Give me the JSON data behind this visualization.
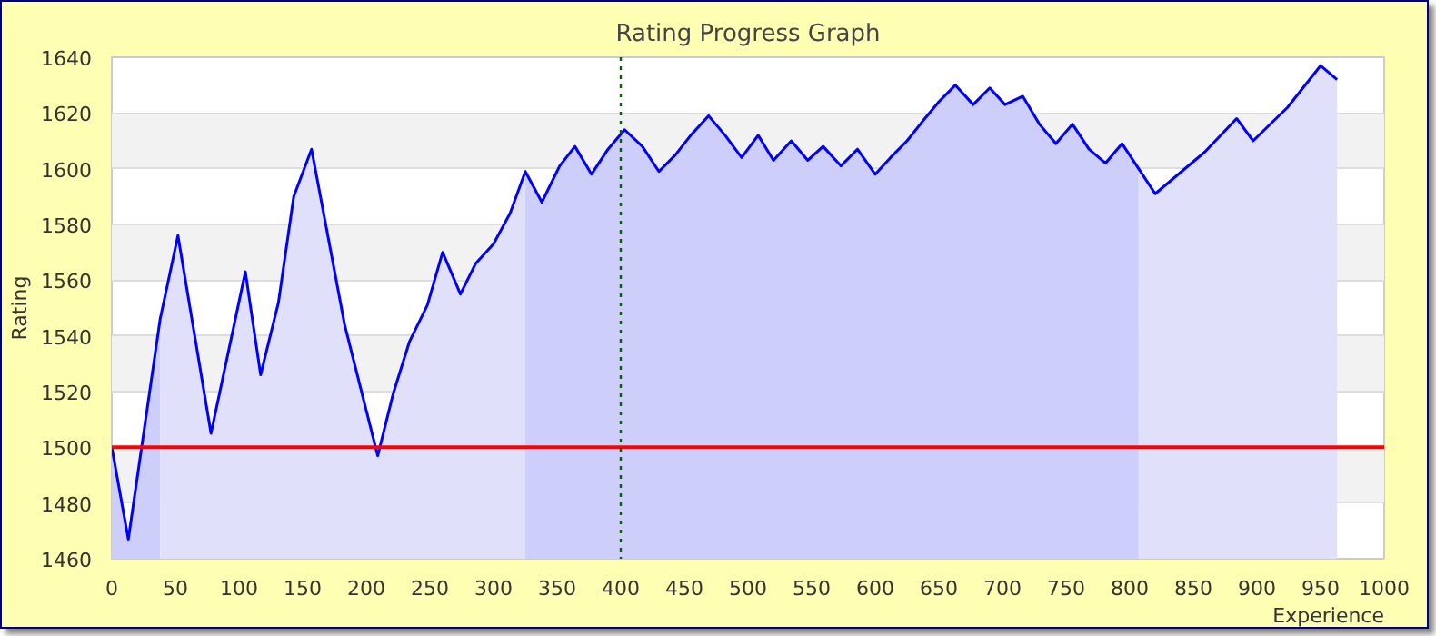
{
  "chart_data": {
    "type": "area",
    "title": "Rating Progress Graph",
    "xlabel": "Experience",
    "ylabel": "Rating",
    "series": [
      {
        "type": "line",
        "color": "#0000ff",
        "x": [
          0,
          13,
          38,
          52,
          78,
          105,
          117,
          131,
          143,
          157,
          183,
          209,
          221,
          234,
          248,
          260,
          274,
          286,
          300,
          313,
          325,
          338,
          352,
          364,
          377,
          390,
          403,
          417,
          430,
          443,
          455,
          469,
          482,
          495,
          508,
          520,
          534,
          547,
          559,
          573,
          586,
          600,
          612,
          625,
          639,
          650,
          663,
          677,
          690,
          702,
          716,
          729,
          742,
          755,
          768,
          781,
          794,
          807,
          820,
          859,
          884,
          897,
          924,
          950,
          963
        ],
        "values": [
          1500,
          1467,
          1546,
          1576,
          1505,
          1563,
          1526,
          1552,
          1590,
          1607,
          1544,
          1497,
          1519,
          1538,
          1551,
          1570,
          1555,
          1566,
          1573,
          1584,
          1599,
          1588,
          1601,
          1608,
          1598,
          1607,
          1614,
          1608,
          1599,
          1605,
          1612,
          1619,
          1612,
          1604,
          1612,
          1603,
          1610,
          1603,
          1608,
          1601,
          1607,
          1598,
          1604,
          1610,
          1618,
          1624,
          1630,
          1623,
          1629,
          1623,
          1626,
          1616,
          1609,
          1616,
          1607,
          1602,
          1609,
          1600,
          1591,
          1606,
          1618,
          1610,
          1622,
          1637,
          1632
        ]
      },
      {
        "color": "#cdcffa",
        "x": [
          0,
          13,
          38
        ],
        "values": [
          1500,
          1467,
          1546
        ]
      },
      {
        "color": "#e0e0fa",
        "x": [
          38,
          52,
          78,
          105,
          117,
          131,
          143,
          157,
          183,
          209,
          221,
          234,
          248,
          260,
          274,
          286,
          300,
          313,
          325
        ],
        "values": [
          1546,
          1576,
          1505,
          1563,
          1526,
          1552,
          1590,
          1607,
          1544,
          1497,
          1519,
          1538,
          1551,
          1570,
          1555,
          1566,
          1573,
          1584,
          1599
        ]
      },
      {
        "color": "#cdcffa",
        "x": [
          325,
          338,
          352,
          364,
          377,
          390,
          403,
          417,
          430,
          443,
          455,
          469,
          482,
          495,
          508,
          520,
          534,
          547,
          559,
          573,
          586,
          600,
          612,
          625,
          639,
          650,
          663,
          677,
          690,
          702,
          716,
          729,
          742,
          755,
          768,
          781,
          794,
          807
        ],
        "values": [
          1599,
          1588,
          1601,
          1608,
          1598,
          1607,
          1614,
          1608,
          1599,
          1605,
          1612,
          1619,
          1612,
          1604,
          1612,
          1603,
          1610,
          1603,
          1608,
          1601,
          1607,
          1598,
          1604,
          1610,
          1618,
          1624,
          1630,
          1623,
          1629,
          1623,
          1626,
          1616,
          1609,
          1616,
          1607,
          1602,
          1609,
          1600
        ]
      },
      {
        "color": "#e0e0fa",
        "x": [
          807,
          820,
          859,
          884,
          897,
          924,
          950,
          963
        ],
        "values": [
          1600,
          1591,
          1606,
          1618,
          1610,
          1622,
          1637,
          1632
        ]
      }
    ],
    "xlim": [
      0,
      1000
    ],
    "ylim": [
      1460,
      1640
    ],
    "xticks": [
      0,
      50,
      100,
      150,
      200,
      250,
      300,
      350,
      400,
      450,
      500,
      550,
      600,
      650,
      700,
      750,
      800,
      850,
      900,
      950,
      1000
    ],
    "yticks": [
      1460,
      1480,
      1500,
      1520,
      1540,
      1560,
      1580,
      1600,
      1620,
      1640
    ],
    "grid": "y",
    "ref_lines": [
      {
        "axis": "y",
        "value": 1500,
        "color": "#ff0000",
        "line_style": "solid"
      },
      {
        "axis": "x",
        "value": 400,
        "color": "#006400",
        "line_style": "dotted"
      }
    ]
  }
}
